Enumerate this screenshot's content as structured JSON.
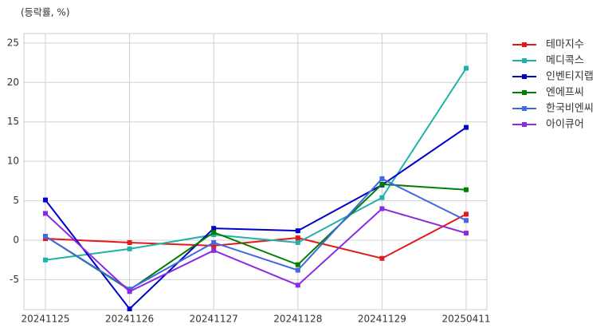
{
  "chart_data": {
    "type": "line",
    "y_label": "(등락률, %)",
    "categories": [
      "20241125",
      "20241126",
      "20241127",
      "20241128",
      "20241129",
      "20250411"
    ],
    "series": [
      {
        "name": "테마지수",
        "color": "#e31a1c",
        "values": [
          0.2,
          -0.3,
          -0.7,
          0.3,
          -2.3,
          3.3
        ]
      },
      {
        "name": "메디콕스",
        "color": "#20b2aa",
        "values": [
          -2.5,
          -1.1,
          0.7,
          -0.3,
          5.4,
          21.8
        ]
      },
      {
        "name": "인벤티지랩",
        "color": "#0000cd",
        "values": [
          5.1,
          -8.7,
          1.5,
          1.2,
          7.0,
          14.3
        ]
      },
      {
        "name": "엔에프씨",
        "color": "#008000",
        "values": [
          0.5,
          -6.3,
          1.0,
          -3.1,
          7.1,
          6.4
        ]
      },
      {
        "name": "한국비엔씨",
        "color": "#4169e1",
        "values": [
          0.5,
          -6.2,
          -0.3,
          -3.8,
          7.8,
          2.5
        ]
      },
      {
        "name": "아이큐어",
        "color": "#8a2be2",
        "values": [
          3.4,
          -6.5,
          -1.3,
          -5.7,
          4.0,
          0.9
        ]
      }
    ],
    "ylim": [
      -8.8,
      26.2
    ],
    "yticks": [
      -5,
      0,
      5,
      10,
      15,
      20,
      25
    ],
    "grid": true,
    "legend": "outside-upper-right"
  }
}
